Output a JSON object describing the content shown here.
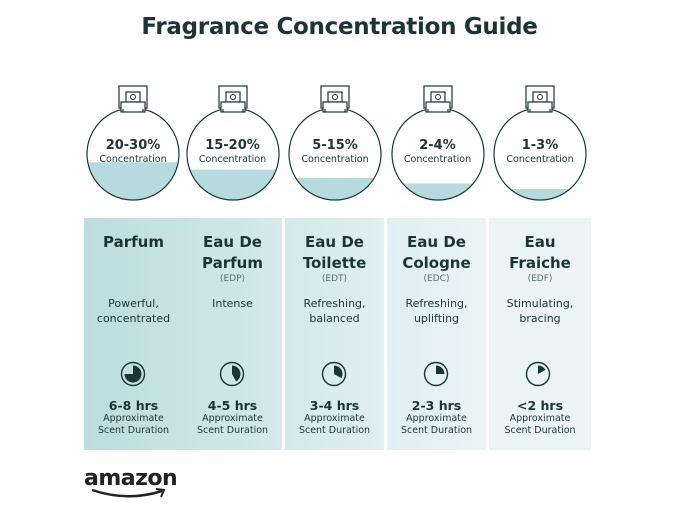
{
  "title": "Fragrance Concentration Guide",
  "colors": {
    "text": "#1d3436",
    "liquid": "#b6dadd",
    "panel_start": "#bcdcdf",
    "panel_end": "#eef6f7"
  },
  "types": [
    {
      "percent": "20-30%",
      "concentration_label": "Concentration",
      "liquid_level": 0.41,
      "name_line1": "Parfum",
      "name_line2": "",
      "abbr": "",
      "desc_line1": "Powerful,",
      "desc_line2": "concentrated",
      "clock_icon": "clock-icon",
      "clock_fill": 0.75,
      "duration": "6-8 hrs",
      "duration_label1": "Approximate",
      "duration_label2": "Scent Duration",
      "panel_color": "#bcdcdf"
    },
    {
      "percent": "15-20%",
      "concentration_label": "Concentration",
      "liquid_level": 0.33,
      "name_line1": "Eau De",
      "name_line2": "Parfum",
      "abbr": "(EDP)",
      "desc_line1": "Intense",
      "desc_line2": "",
      "clock_icon": "clock-icon",
      "clock_fill": 0.42,
      "duration": "4-5 hrs",
      "duration_label1": "Approximate",
      "duration_label2": "Scent Duration",
      "panel_color": "#c8e3e6"
    },
    {
      "percent": "5-15%",
      "concentration_label": "Concentration",
      "liquid_level": 0.24,
      "name_line1": "Eau De",
      "name_line2": "Toilette",
      "abbr": "(EDT)",
      "desc_line1": "Refreshing,",
      "desc_line2": "balanced",
      "clock_icon": "clock-icon",
      "clock_fill": 0.33,
      "duration": "3-4 hrs",
      "duration_label1": "Approximate",
      "duration_label2": "Scent Duration",
      "panel_color": "#d4e9eb"
    },
    {
      "percent": "2-4%",
      "concentration_label": "Concentration",
      "liquid_level": 0.18,
      "name_line1": "Eau De",
      "name_line2": "Cologne",
      "abbr": "(EDC)",
      "desc_line1": "Refreshing,",
      "desc_line2": "uplifting",
      "clock_icon": "clock-icon",
      "clock_fill": 0.25,
      "duration": "2-3 hrs",
      "duration_label1": "Approximate",
      "duration_label2": "Scent Duration",
      "panel_color": "#e0eff1"
    },
    {
      "percent": "1-3%",
      "concentration_label": "Concentration",
      "liquid_level": 0.12,
      "name_line1": "Eau",
      "name_line2": "Fraiche",
      "abbr": "(EDF)",
      "desc_line1": "Stimulating,",
      "desc_line2": "bracing",
      "clock_icon": "clock-icon",
      "clock_fill": 0.17,
      "duration": "<2 hrs",
      "duration_label1": "Approximate",
      "duration_label2": "Scent Duration",
      "panel_color": "#eaf4f5"
    }
  ],
  "logo": "amazon"
}
